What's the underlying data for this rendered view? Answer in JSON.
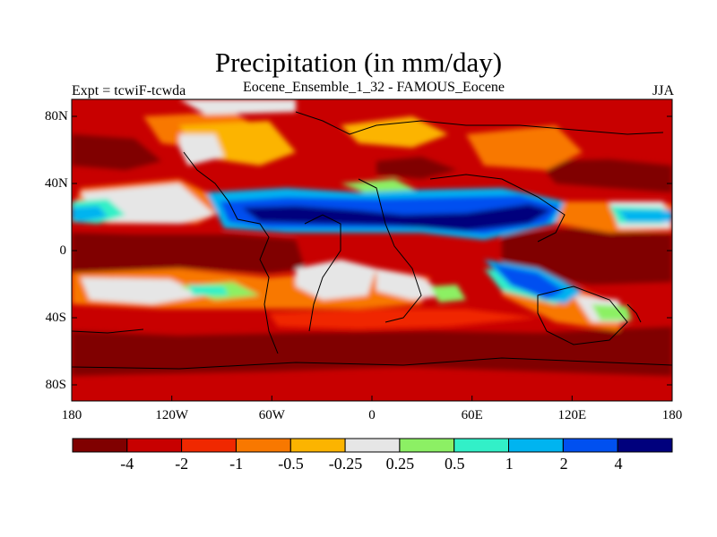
{
  "header": {
    "title": "Precipitation (in mm/day)",
    "subtitle": "Eocene_Ensemble_1_32 - FAMOUS_Eocene",
    "left_label": "Expt = tcwiF-tcwda",
    "right_label": "JJA"
  },
  "map": {
    "lat_ticks": [
      "80N",
      "40N",
      "0",
      "40S",
      "80S"
    ],
    "lon_ticks": [
      "180",
      "120W",
      "60W",
      "0",
      "60E",
      "120E",
      "180"
    ]
  },
  "colorbar": {
    "colors": [
      "#800000",
      "#c80000",
      "#f02800",
      "#f87800",
      "#fcb400",
      "#e6e6e6",
      "#8cf064",
      "#32f0c8",
      "#00b4f0",
      "#0050f0",
      "#00007d"
    ],
    "labels": [
      "-4",
      "-2",
      "-1",
      "-0.5",
      "-0.25",
      "0.25",
      "0.5",
      "1",
      "2",
      "4"
    ]
  }
}
